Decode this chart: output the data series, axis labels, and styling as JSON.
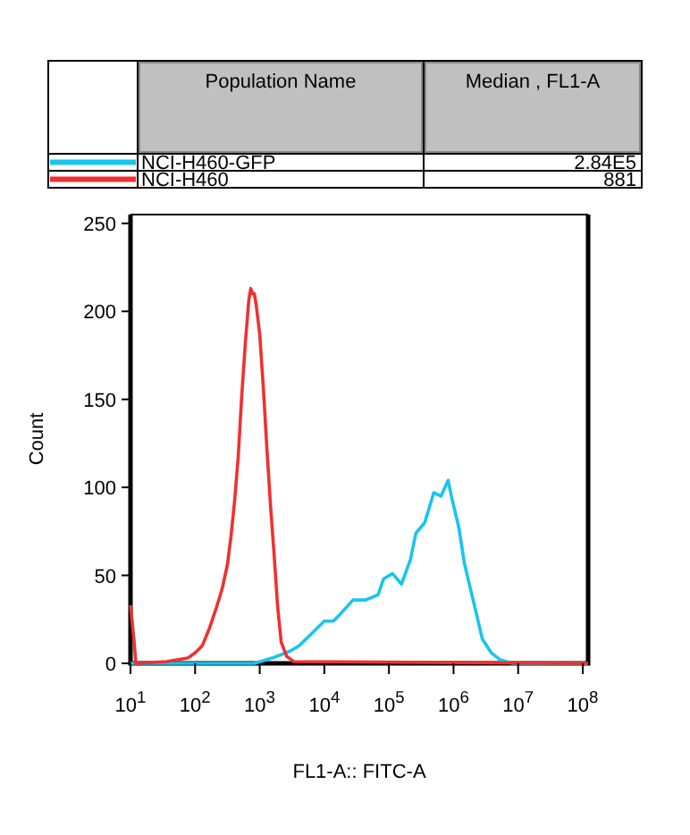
{
  "chart_data": {
    "type": "line",
    "xlabel": "FL1-A:: FITC-A",
    "ylabel": "Count",
    "log": "x",
    "legend": "top",
    "legend_title": "Population Name",
    "annotations": [
      "Median , FL1-A",
      "2.84E5",
      "881"
    ],
    "xlim": [
      10,
      121000000
    ],
    "ylim": [
      0,
      255
    ],
    "xticks": [
      {
        "value": 10,
        "label": "10$^{1}$"
      },
      {
        "value": 100,
        "label": "10$^{2}$"
      },
      {
        "value": 1000,
        "label": "10$^{3}$"
      },
      {
        "value": 10000,
        "label": "10$^{4}$"
      },
      {
        "value": 100000,
        "label": "10$^{5}$"
      },
      {
        "value": 1000000,
        "label": "10$^{6}$"
      },
      {
        "value": 10000000,
        "label": "10$^{7}$"
      },
      {
        "value": 100000000,
        "label": "10$^{8}$"
      }
    ],
    "yticks": [
      0,
      50,
      100,
      150,
      200,
      250
    ],
    "grid": false,
    "line_style": "solid",
    "series": [
      {
        "name": "NCI-H460-GFP",
        "color": "#18c4f0",
        "x": [
          10,
          825,
          1563,
          2970,
          4080,
          5620,
          10000,
          13770,
          16680,
          27830,
          43500,
          68100,
          82500,
          113600,
          156400,
          215400,
          261000,
          359000,
          494000,
          640000,
          825000,
          938000,
          1210000,
          1470000,
          1780000,
          2300000,
          2780000,
          3830000,
          5270000,
          8250000,
          121000000
        ],
        "values": [
          0,
          0,
          3,
          7,
          10,
          15,
          24,
          24,
          27,
          36,
          36,
          39,
          48,
          51,
          45,
          59,
          74,
          80,
          97,
          95,
          104,
          94,
          77,
          57,
          44,
          27,
          14,
          6,
          2,
          0,
          0
        ]
      },
      {
        "name": "NCI-H460",
        "color": "#f03030",
        "x": [
          10,
          11.4,
          12.1,
          36,
          53,
          77,
          100,
          129,
          167,
          215,
          261,
          316,
          359,
          408,
          464,
          527,
          599,
          681,
          726,
          774,
          825,
          880,
          1000,
          1136,
          1292,
          1468,
          1668,
          1896,
          2154,
          2610,
          3370,
          121000000
        ],
        "values": [
          33,
          12,
          0,
          1,
          2,
          3,
          6,
          10,
          20,
          32,
          42,
          56,
          72,
          92,
          117,
          152,
          182,
          207,
          213,
          210,
          210,
          204,
          187,
          157,
          122,
          90,
          62,
          32,
          12,
          4,
          1,
          0
        ]
      }
    ]
  }
}
